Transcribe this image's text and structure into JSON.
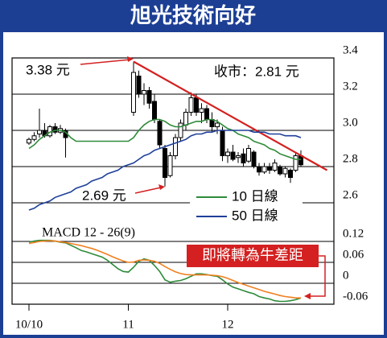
{
  "title": "旭光技術向好",
  "chart_data": [
    {
      "type": "candlestick",
      "categories": [
        "10/10",
        null,
        null,
        null,
        null,
        null,
        null,
        null,
        null,
        null,
        null,
        null,
        null,
        null,
        null,
        null,
        null,
        null,
        null,
        "11",
        null,
        null,
        null,
        null,
        null,
        null,
        null,
        null,
        null,
        null,
        null,
        null,
        null,
        null,
        null,
        null,
        null,
        null,
        "12",
        null,
        null,
        null,
        null,
        null,
        null,
        null,
        null,
        null,
        null,
        null,
        null,
        null,
        null
      ],
      "open": [
        2.93,
        2.95,
        2.98,
        3.0,
        2.97,
        3.02,
        2.99,
        3.0,
        null,
        null,
        null,
        null,
        null,
        null,
        null,
        null,
        null,
        null,
        null,
        null,
        3.1,
        3.3,
        3.2,
        3.22,
        3.16,
        3.05,
        2.9,
        2.75,
        2.86,
        2.96,
        3.03,
        3.1,
        3.18,
        3.1,
        3.12,
        3.06,
        3.02,
        3.0,
        2.86,
        2.88,
        2.85,
        2.87,
        2.83,
        2.88,
        2.8,
        2.77,
        2.8,
        2.78,
        2.8,
        2.76,
        2.78,
        2.78,
        2.86
      ],
      "high": [
        2.96,
        2.99,
        3.12,
        3.04,
        3.03,
        3.04,
        3.03,
        3.01,
        null,
        null,
        null,
        null,
        null,
        null,
        null,
        null,
        null,
        null,
        null,
        null,
        3.38,
        3.33,
        3.26,
        3.24,
        3.2,
        3.06,
        2.92,
        2.88,
        2.98,
        3.06,
        3.12,
        3.21,
        3.2,
        3.15,
        3.14,
        3.1,
        3.06,
        3.02,
        2.9,
        2.92,
        2.88,
        2.9,
        2.92,
        2.89,
        2.82,
        2.82,
        2.82,
        2.84,
        2.81,
        2.8,
        2.79,
        2.88,
        2.89
      ],
      "low": [
        2.92,
        2.94,
        2.96,
        2.96,
        2.96,
        2.98,
        2.98,
        2.85,
        null,
        null,
        null,
        null,
        null,
        null,
        null,
        null,
        null,
        null,
        null,
        null,
        3.08,
        3.18,
        3.14,
        3.12,
        3.04,
        2.9,
        2.69,
        2.74,
        2.84,
        2.94,
        3.0,
        3.08,
        3.08,
        3.04,
        3.04,
        2.99,
        2.98,
        2.83,
        2.82,
        2.83,
        2.82,
        2.8,
        2.82,
        2.79,
        2.75,
        2.76,
        2.76,
        2.77,
        2.75,
        2.74,
        2.71,
        2.77,
        2.8
      ],
      "close": [
        2.95,
        2.97,
        3.0,
        2.97,
        3.02,
        2.99,
        3.01,
        2.96,
        null,
        null,
        null,
        null,
        null,
        null,
        null,
        null,
        null,
        null,
        null,
        null,
        3.32,
        3.2,
        3.22,
        3.15,
        3.06,
        2.92,
        2.74,
        2.86,
        2.96,
        3.04,
        3.1,
        3.18,
        3.1,
        3.12,
        3.06,
        3.02,
        3.04,
        2.86,
        2.88,
        2.84,
        2.86,
        2.82,
        2.9,
        2.8,
        2.77,
        2.8,
        2.78,
        2.82,
        2.76,
        2.79,
        2.74,
        2.86,
        2.81
      ],
      "series": [
        {
          "name": "10 日線",
          "color": "#2e8b3a",
          "values": [
            2.9,
            2.92,
            2.95,
            2.97,
            2.99,
            3.0,
            3.0,
            2.99,
            2.96,
            2.94,
            2.94,
            2.94,
            2.94,
            2.94,
            2.94,
            2.94,
            2.94,
            2.94,
            2.94,
            2.94,
            2.96,
            3.0,
            3.03,
            3.05,
            3.06,
            3.06,
            3.05,
            3.03,
            3.02,
            3.02,
            3.03,
            3.04,
            3.05,
            3.05,
            3.06,
            3.06,
            3.05,
            3.03,
            3.01,
            3.0,
            2.98,
            2.97,
            2.96,
            2.94,
            2.93,
            2.92,
            2.9,
            2.89,
            2.87,
            2.86,
            2.85,
            2.84,
            2.84
          ]
        },
        {
          "name": "50 日線",
          "color": "#1f3f99",
          "values": [
            2.56,
            2.57,
            2.59,
            2.6,
            2.61,
            2.63,
            2.64,
            2.65,
            2.66,
            2.68,
            2.69,
            2.7,
            2.72,
            2.73,
            2.74,
            2.76,
            2.77,
            2.78,
            2.8,
            2.81,
            2.82,
            2.84,
            2.86,
            2.87,
            2.89,
            2.9,
            2.91,
            2.92,
            2.93,
            2.94,
            2.95,
            2.97,
            2.98,
            2.98,
            2.99,
            2.99,
            3.0,
            3.0,
            3.0,
            3.0,
            3.0,
            3.0,
            3.0,
            2.99,
            2.99,
            2.99,
            2.98,
            2.98,
            2.98,
            2.97,
            2.97,
            2.97,
            2.96
          ]
        }
      ],
      "trendline": {
        "color": "#d42020",
        "x": [
          20,
          57
        ],
        "y": [
          3.38,
          2.78
        ]
      },
      "ylim": [
        2.46,
        3.4
      ],
      "yticks": [
        2.6,
        2.8,
        {
          "value": 3,
          "label": "3.0"
        },
        3.2,
        3.4
      ],
      "annotations": [
        "3.38 元",
        "2.69 元",
        "收市：2.81 元"
      ]
    },
    {
      "type": "line",
      "title": "MACD 12 - 26(9)",
      "series": [
        {
          "color": "#2e8b3a",
          "values": [
            0.118,
            0.121,
            0.123,
            0.123,
            0.123,
            0.121,
            0.118,
            0.116,
            0.109,
            0.102,
            0.094,
            0.09,
            0.085,
            0.08,
            0.075,
            0.066,
            0.054,
            0.042,
            0.034,
            0.032,
            0.046,
            0.063,
            0.07,
            0.066,
            0.051,
            0.034,
            0.01,
            0.003,
            0.006,
            0.008,
            0.013,
            0.02,
            0.027,
            0.027,
            0.025,
            0.022,
            0.02,
            0.01,
            -0.002,
            -0.011,
            -0.016,
            -0.021,
            -0.026,
            -0.03,
            -0.038,
            -0.042,
            -0.045,
            -0.05,
            -0.052,
            -0.052,
            -0.05,
            -0.047,
            -0.042
          ]
        },
        {
          "color": "#f08020",
          "values": [
            0.114,
            0.117,
            0.12,
            0.121,
            0.122,
            0.121,
            0.119,
            0.117,
            0.114,
            0.111,
            0.108,
            0.104,
            0.1,
            0.095,
            0.089,
            0.083,
            0.076,
            0.07,
            0.064,
            0.06,
            0.061,
            0.066,
            0.067,
            0.066,
            0.063,
            0.057,
            0.048,
            0.04,
            0.033,
            0.028,
            0.025,
            0.024,
            0.024,
            0.024,
            0.024,
            0.023,
            0.022,
            0.019,
            0.014,
            0.008,
            0.002,
            -0.003,
            -0.008,
            -0.013,
            -0.018,
            -0.023,
            -0.027,
            -0.031,
            -0.035,
            -0.038,
            -0.04,
            -0.042,
            -0.042
          ]
        }
      ],
      "ylim": [
        -0.06,
        0.16
      ],
      "yticks": [
        0.12,
        0.06,
        0,
        -0.06
      ],
      "annotations": [
        "即將轉為牛差距"
      ]
    }
  ]
}
